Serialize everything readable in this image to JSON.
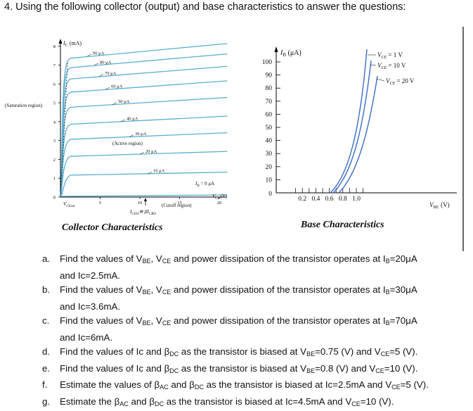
{
  "heading": "4.  Using the following collector (output) and base characteristics to answer the questions:",
  "collector": {
    "caption": "Collector Characteristics",
    "y_axis_label": "I",
    "y_axis_sub": "C",
    "y_axis_unit": "(mA)",
    "y_ticks": [
      "8",
      "7",
      "6",
      "5",
      "4",
      "3",
      "2",
      "1",
      "0"
    ],
    "x_ticks": [
      "5",
      "10",
      "15",
      "20"
    ],
    "x_axis_label": "V",
    "x_axis_sub": "CE",
    "x_axis_unit": "(V)",
    "vcesat_label": "V",
    "vcesat_sub": "CEsat",
    "saturation_label": "(Saturation region)",
    "active_label": "(Active region)",
    "cutoff_label": "(Cutoff region)",
    "iceo_label": "I",
    "iceo_sub1": "CEO",
    "iceo_approx": "≅ β",
    "iceo_sub2": "CBO",
    "ib_zero_label": "I",
    "ib_zero_sub": "B",
    "ib_zero_value": " = 0 μA",
    "curves": [
      {
        "label": "90 μA",
        "ic": 7.4
      },
      {
        "label": "80 μA",
        "ic": 6.9
      },
      {
        "label": "70 μA",
        "ic": 6.3
      },
      {
        "label": "60 μA",
        "ic": 5.6
      },
      {
        "label": "50 μA",
        "ic": 4.8
      },
      {
        "label": "40 μA",
        "ic": 3.9
      },
      {
        "label": "30 μA",
        "ic": 3.1
      },
      {
        "label": "20 μA",
        "ic": 2.2
      },
      {
        "label": "10 μA",
        "ic": 1.2
      }
    ]
  },
  "base": {
    "caption": "Base Characteristics",
    "y_axis_label": "I",
    "y_axis_sub": "B",
    "y_axis_unit": " (μA)",
    "y_ticks": [
      "100",
      "90",
      "80",
      "70",
      "60",
      "50",
      "40",
      "30",
      "20",
      "10",
      "0"
    ],
    "x_ticks": [
      "0.2",
      "0.4",
      "0.6",
      "0.8",
      "1.0"
    ],
    "x_axis_label": "V",
    "x_axis_sub": "BE",
    "x_axis_unit": "(V)",
    "curve_labels": [
      {
        "pre": "V",
        "sub": "CE",
        "post": " = 1 V"
      },
      {
        "pre": "V",
        "sub": "CE",
        "post": " = 10 V"
      },
      {
        "pre": "V",
        "sub": "CE",
        "post": " = 20 V"
      }
    ]
  },
  "questions": [
    {
      "label": "a.",
      "line1": [
        [
          "Find the values of V",
          ""
        ],
        [
          "BE",
          "s"
        ],
        [
          ", V",
          ""
        ],
        [
          "CE",
          "s"
        ],
        [
          " and power dissipation of the transistor operates at I",
          ""
        ],
        [
          "B",
          "s"
        ],
        [
          "=20μA",
          ""
        ]
      ],
      "line2": "and Ic=2.5mA."
    },
    {
      "label": "b.",
      "line1": [
        [
          "Find the values of V",
          ""
        ],
        [
          "BE",
          "s"
        ],
        [
          ", V",
          ""
        ],
        [
          "CE",
          "s"
        ],
        [
          " and power dissipation of the transistor operates at I",
          ""
        ],
        [
          "B",
          "s"
        ],
        [
          "=30μA",
          ""
        ]
      ],
      "line2": "and Ic=3.6mA."
    },
    {
      "label": "c.",
      "line1": [
        [
          "Find the values of V",
          ""
        ],
        [
          "BE",
          "s"
        ],
        [
          ", V",
          ""
        ],
        [
          "CE",
          "s"
        ],
        [
          " and power dissipation of the transistor operates at I",
          ""
        ],
        [
          "B",
          "s"
        ],
        [
          "=70μA",
          ""
        ]
      ],
      "line2": "and Ic=6mA."
    },
    {
      "label": "d.",
      "line1": [
        [
          "Find the values of Ic and β",
          ""
        ],
        [
          "DC",
          "s"
        ],
        [
          " as the transistor is biased at V",
          ""
        ],
        [
          "BE",
          "s"
        ],
        [
          "=0.75 (V) and V",
          ""
        ],
        [
          "CE",
          "s"
        ],
        [
          "=5 (V).",
          ""
        ]
      ],
      "line2": ""
    },
    {
      "label": "e.",
      "line1": [
        [
          "Find the values of Ic and β",
          ""
        ],
        [
          "DC",
          "s"
        ],
        [
          " as the transistor is biased at V",
          ""
        ],
        [
          "BE",
          "s"
        ],
        [
          "=0.8 (V) and V",
          ""
        ],
        [
          "CE",
          "s"
        ],
        [
          "=10 (V).",
          ""
        ]
      ],
      "line2": ""
    },
    {
      "label": "f.",
      "line1": [
        [
          "Estimate the values of β",
          ""
        ],
        [
          "AC",
          "s"
        ],
        [
          " and β",
          ""
        ],
        [
          "DC",
          "s"
        ],
        [
          " as the transistor is biased at Ic=2.5mA and V",
          ""
        ],
        [
          "CE",
          "s"
        ],
        [
          "=5 (V).",
          ""
        ]
      ],
      "line2": ""
    },
    {
      "label": "g.",
      "line1": [
        [
          "Estimate the β",
          ""
        ],
        [
          "AC",
          "s"
        ],
        [
          " and β",
          ""
        ],
        [
          "DC",
          "s"
        ],
        [
          " as the transistor is biased at Ic=4.5mA and V",
          ""
        ],
        [
          "CE",
          "s"
        ],
        [
          "=10 (V).",
          ""
        ]
      ],
      "line2": ""
    }
  ]
}
